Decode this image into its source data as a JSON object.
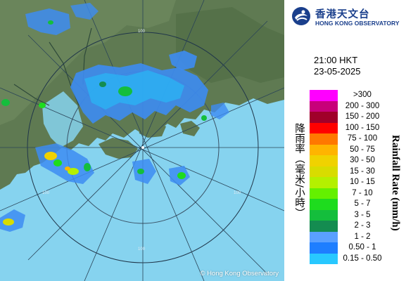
{
  "map": {
    "copyright": "© Hong Kong Observatory",
    "range_ring_labels": [
      "100",
      "100",
      "100",
      "100"
    ]
  },
  "logo": {
    "name_zh": "香港天文台",
    "name_en": "HONG KONG OBSERVATORY"
  },
  "timestamp": {
    "time": "21:00 HKT",
    "date": "23-05-2025"
  },
  "legend": {
    "title_zh": "降雨率（毫米/小時）",
    "title_en": "Rainfall Rate (mm/h)",
    "items": [
      {
        "label": ">300",
        "color": "#ff00ff"
      },
      {
        "label": "200 - 300",
        "color": "#c8007a"
      },
      {
        "label": "150 - 200",
        "color": "#a0002a"
      },
      {
        "label": "100 - 150",
        "color": "#ff0000"
      },
      {
        "label": "75 - 100",
        "color": "#ff7800"
      },
      {
        "label": "50 - 75",
        "color": "#ffb400"
      },
      {
        "label": "30 - 50",
        "color": "#f0d200"
      },
      {
        "label": "15 - 30",
        "color": "#d8dc00"
      },
      {
        "label": "10 - 15",
        "color": "#b4f000"
      },
      {
        "label": "7 - 10",
        "color": "#64f000"
      },
      {
        "label": "5 - 7",
        "color": "#1edc1e"
      },
      {
        "label": "3 - 5",
        "color": "#14be3c"
      },
      {
        "label": "2 - 3",
        "color": "#148c50"
      },
      {
        "label": "1 - 2",
        "color": "#5aa0ff"
      },
      {
        "label": "0.50 - 1",
        "color": "#1e7eff"
      },
      {
        "label": "0.15 - 0.50",
        "color": "#28c8ff"
      }
    ]
  }
}
